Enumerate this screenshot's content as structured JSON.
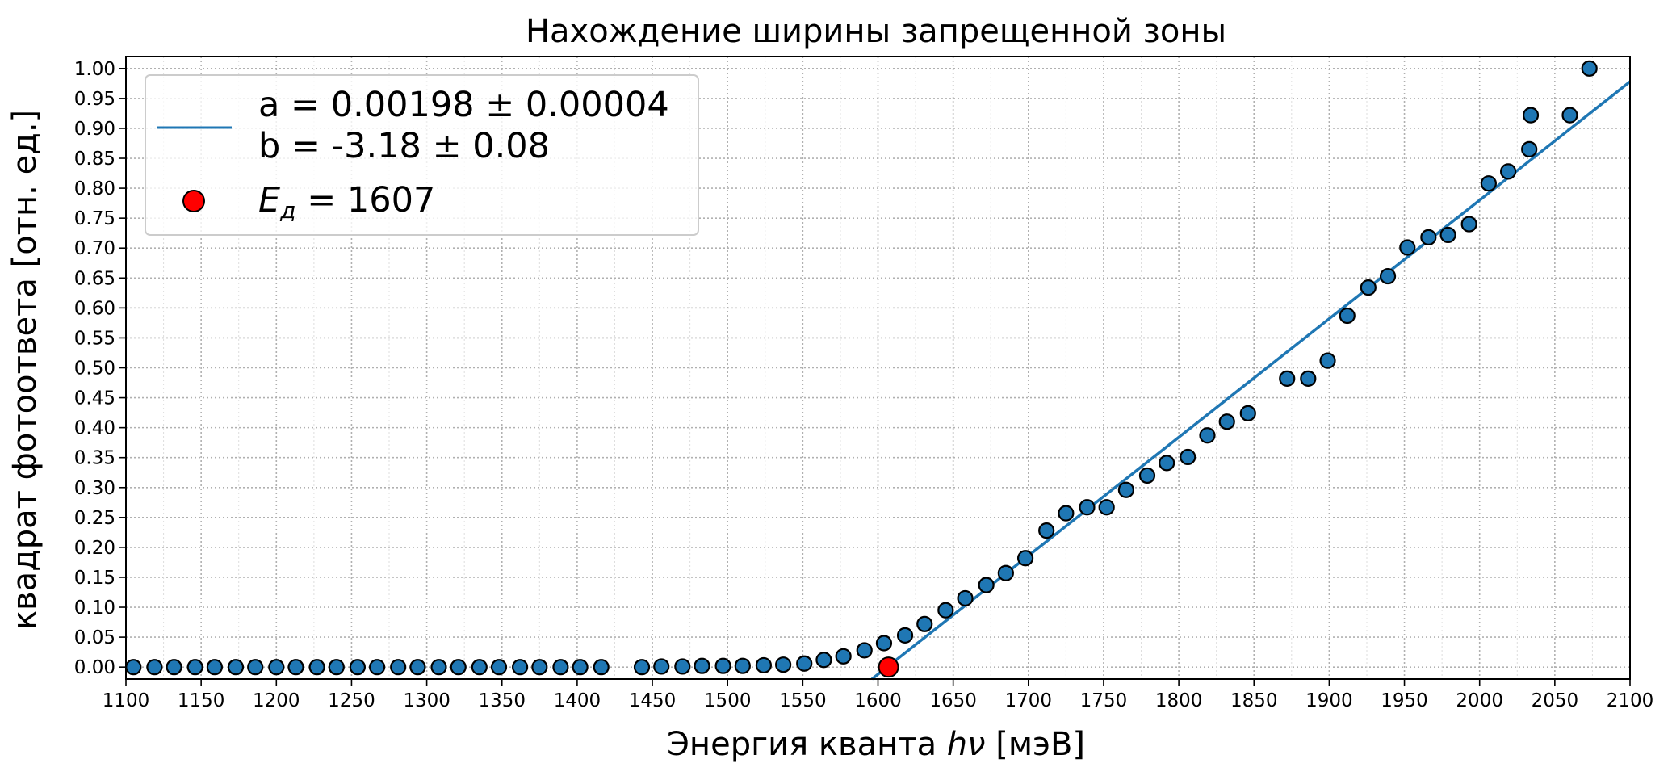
{
  "chart_data": {
    "type": "scatter",
    "title": "Нахождение ширины запрещенной зоны",
    "xlabel": "Энергия кванта hν [мэВ]",
    "xlabel_main": "Энергия кванта ",
    "xlabel_math": "hν",
    "xlabel_unit": " [мэВ]",
    "ylabel": "квадрат фотоответа [отн. ед.]",
    "xlim": [
      1100,
      2100
    ],
    "ylim": [
      -0.02,
      1.02
    ],
    "x_ticks": [
      "1100",
      "1150",
      "1200",
      "1250",
      "1300",
      "1350",
      "1400",
      "1450",
      "1500",
      "1550",
      "1600",
      "1650",
      "1700",
      "1750",
      "1800",
      "1850",
      "1900",
      "1950",
      "2000",
      "2050",
      "2100"
    ],
    "y_ticks": [
      "0.00",
      "0.05",
      "0.10",
      "0.15",
      "0.20",
      "0.25",
      "0.30",
      "0.35",
      "0.40",
      "0.45",
      "0.50",
      "0.55",
      "0.60",
      "0.65",
      "0.70",
      "0.75",
      "0.80",
      "0.85",
      "0.90",
      "0.95",
      "1.00"
    ],
    "grid": true,
    "legend_position": "top-left",
    "colors": {
      "points": "#1f77b4",
      "fit_line": "#1f77b4",
      "intercept": "#ff0000",
      "grid": "#b0b0b0"
    },
    "fit_line": {
      "slope": 0.00198,
      "intercept": -3.18,
      "label_a": "a = 0.00198 ± 0.00004",
      "label_b": "b = -3.18 ± 0.08"
    },
    "legend": {
      "line_label_a": "a = 0.00198 ± 0.00004",
      "line_label_b": "b = -3.18 ± 0.08",
      "point_label_sym": "E",
      "point_label_sub": "д",
      "point_label_rest": " = 1607"
    },
    "intercept_point": {
      "x": 1607,
      "y": 0
    },
    "x": [
      1105,
      1119,
      1132,
      1146,
      1159,
      1173,
      1186,
      1200,
      1213,
      1227,
      1240,
      1254,
      1267,
      1281,
      1294,
      1308,
      1321,
      1335,
      1348,
      1362,
      1375,
      1389,
      1402,
      1416,
      1443,
      1456,
      1470,
      1483,
      1497,
      1510,
      1524,
      1537,
      1551,
      1564,
      1577,
      1591,
      1604,
      1618,
      1631,
      1645,
      1658,
      1672,
      1685,
      1698,
      1712,
      1725,
      1739,
      1752,
      1765,
      1779,
      1792,
      1806,
      1819,
      1832,
      1846,
      1872,
      1886,
      1899,
      1912,
      1926,
      1939,
      1952,
      1966,
      1979,
      1993,
      2006,
      2019,
      2033,
      2034,
      2060,
      2073
    ],
    "y": [
      0,
      0,
      0,
      0,
      0,
      0,
      0,
      0,
      0,
      0,
      0,
      0,
      0,
      0,
      0,
      0,
      0,
      0,
      0,
      0,
      0,
      0,
      0,
      0,
      0,
      0.001,
      0.001,
      0.002,
      0.002,
      0.002,
      0.003,
      0.004,
      0.006,
      0.012,
      0.018,
      0.028,
      0.04,
      0.053,
      0.072,
      0.095,
      0.115,
      0.137,
      0.157,
      0.182,
      0.228,
      0.257,
      0.267,
      0.267,
      0.296,
      0.32,
      0.341,
      0.351,
      0.387,
      0.41,
      0.424,
      0.482,
      0.482,
      0.512,
      0.587,
      0.634,
      0.653,
      0.701,
      0.718,
      0.722,
      0.74,
      0.808,
      0.828,
      0.865,
      0.922,
      0.922,
      1.0
    ]
  }
}
